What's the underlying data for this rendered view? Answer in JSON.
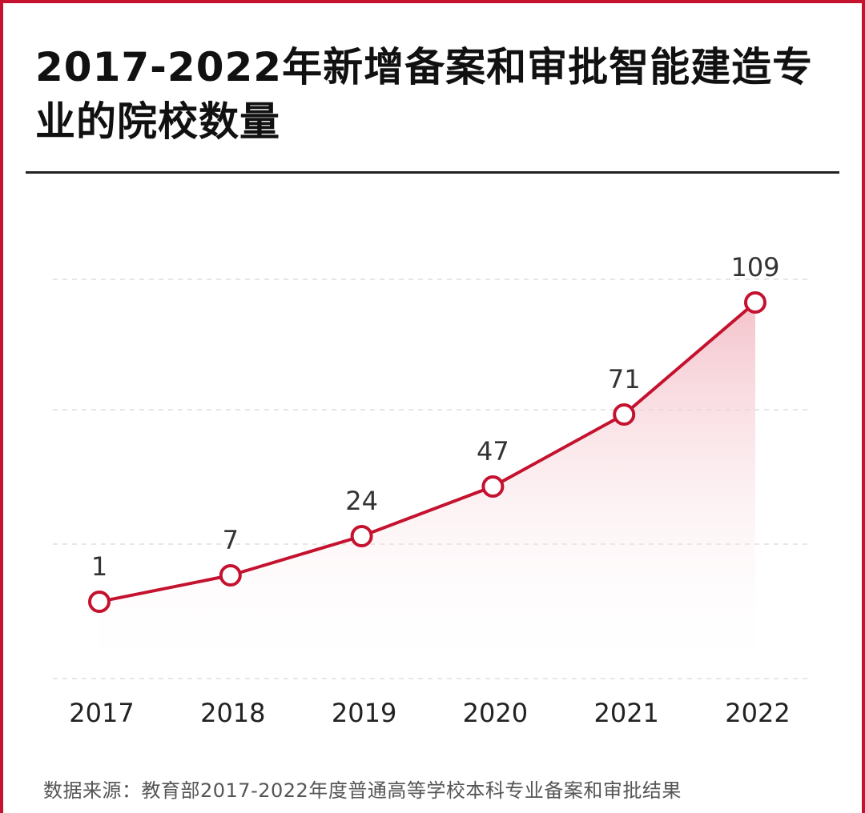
{
  "title": "2017-2022年新增备案和审批智能建造专业的院校数量",
  "source": "数据来源：教育部2017-2022年度普通高等学校本科专业备案和审批结果",
  "colors": {
    "accent": "#c4122f",
    "line": "#c4122f",
    "area_top": "#f2b8c2",
    "grid": "#dddddd",
    "label": "#333333"
  },
  "chart_data": {
    "type": "line",
    "title": "2017-2022年新增备案和审批智能建造专业的院校数量",
    "xlabel": "",
    "ylabel": "",
    "categories": [
      "2017",
      "2018",
      "2019",
      "2020",
      "2021",
      "2022"
    ],
    "series": [
      {
        "values": [
          1,
          7,
          24,
          47,
          71,
          109
        ]
      }
    ],
    "data_labels": [
      "1",
      "7",
      "24",
      "47",
      "71",
      "109"
    ],
    "area_fill": true,
    "grid": "horizontal-dashed",
    "legend": "none"
  }
}
